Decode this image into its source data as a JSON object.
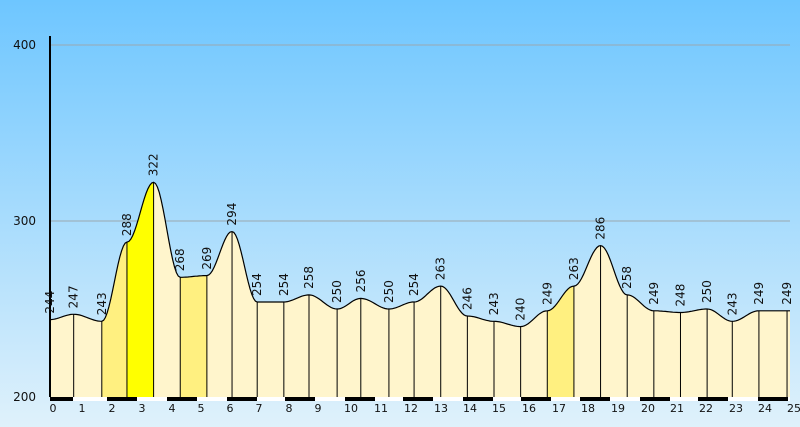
{
  "chart_data": {
    "type": "area",
    "title": "",
    "xlabel": "",
    "ylabel": "",
    "ylim": [
      200,
      400
    ],
    "y_ticks": [
      "200",
      "300",
      "400"
    ],
    "x_ticks": [
      "0",
      "1",
      "2",
      "3",
      "4",
      "5",
      "6",
      "7",
      "8",
      "9",
      "10",
      "11",
      "12",
      "13",
      "14",
      "15",
      "16",
      "17",
      "18",
      "19",
      "20",
      "21",
      "22",
      "23",
      "24",
      "25"
    ],
    "grid": true,
    "points": [
      {
        "x": 0.0,
        "y": 244,
        "label": "244"
      },
      {
        "x": 0.8,
        "y": 247,
        "label": "247"
      },
      {
        "x": 1.75,
        "y": 243,
        "label": "243"
      },
      {
        "x": 2.6,
        "y": 288,
        "label": "288"
      },
      {
        "x": 3.5,
        "y": 322,
        "label": "322"
      },
      {
        "x": 4.4,
        "y": 268,
        "label": "268"
      },
      {
        "x": 5.3,
        "y": 269,
        "label": "269"
      },
      {
        "x": 6.15,
        "y": 294,
        "label": "294"
      },
      {
        "x": 7.0,
        "y": 254,
        "label": "254"
      },
      {
        "x": 7.9,
        "y": 254,
        "label": "254"
      },
      {
        "x": 8.75,
        "y": 258,
        "label": "258"
      },
      {
        "x": 9.7,
        "y": 250,
        "label": "250"
      },
      {
        "x": 10.5,
        "y": 256,
        "label": "256"
      },
      {
        "x": 11.45,
        "y": 250,
        "label": "250"
      },
      {
        "x": 12.3,
        "y": 254,
        "label": "254"
      },
      {
        "x": 13.2,
        "y": 263,
        "label": "263"
      },
      {
        "x": 14.1,
        "y": 246,
        "label": "246"
      },
      {
        "x": 15.0,
        "y": 243,
        "label": "243"
      },
      {
        "x": 15.9,
        "y": 240,
        "label": "240"
      },
      {
        "x": 16.8,
        "y": 249,
        "label": "249"
      },
      {
        "x": 17.7,
        "y": 263,
        "label": "263"
      },
      {
        "x": 18.6,
        "y": 286,
        "label": "286"
      },
      {
        "x": 19.5,
        "y": 258,
        "label": "258"
      },
      {
        "x": 20.4,
        "y": 249,
        "label": "249"
      },
      {
        "x": 21.3,
        "y": 248,
        "label": "248"
      },
      {
        "x": 22.2,
        "y": 250,
        "label": "250"
      },
      {
        "x": 23.05,
        "y": 243,
        "label": "243"
      },
      {
        "x": 23.95,
        "y": 249,
        "label": "249"
      },
      {
        "x": 24.9,
        "y": 249,
        "label": "249"
      }
    ],
    "segment_fills": [
      "#fff5cc",
      "#fff5cc",
      "#fff080",
      "#ffff00",
      "#fff5cc",
      "#fff080",
      "#fff5cc",
      "#fff5cc",
      "#fff5cc",
      "#fff5cc",
      "#fff5cc",
      "#fff5cc",
      "#fff5cc",
      "#fff5cc",
      "#fff5cc",
      "#fff5cc",
      "#fff5cc",
      "#fff5cc",
      "#fff5cc",
      "#fff080",
      "#fff5cc",
      "#fff5cc",
      "#fff5cc",
      "#fff5cc",
      "#fff5cc",
      "#fff5cc",
      "#fff5cc",
      "#fff5cc"
    ],
    "colors": {
      "sky_top": "#6ec6ff",
      "sky_bottom": "#dff1fb",
      "fill_light": "#fff5cc",
      "fill_mid": "#fff080",
      "fill_peak": "#ffff00",
      "line": "#000000",
      "grid": "#9aa8b0",
      "axis": "#000000"
    }
  }
}
